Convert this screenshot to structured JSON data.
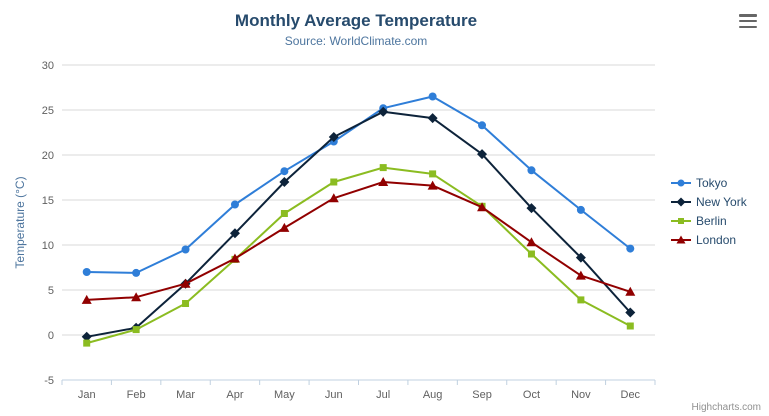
{
  "header": {
    "title": "Monthly Average Temperature",
    "subtitle": "Source: WorldClimate.com"
  },
  "icons": {
    "export_menu": "hamburger-menu-icon"
  },
  "credits": "Highcharts.com",
  "colors": {
    "title_text": "#274b6d",
    "subtitle_text": "#4d759e",
    "axis_label_text": "#606060",
    "gridline": "#d8d8d8",
    "axis_line": "#c0d0e0"
  },
  "chart_data": {
    "type": "line",
    "title": "Monthly Average Temperature",
    "subtitle": "Source: WorldClimate.com",
    "xlabel": "",
    "ylabel": "Temperature (°C)",
    "categories": [
      "Jan",
      "Feb",
      "Mar",
      "Apr",
      "May",
      "Jun",
      "Jul",
      "Aug",
      "Sep",
      "Oct",
      "Nov",
      "Dec"
    ],
    "ylim": [
      -5,
      30
    ],
    "yticks": [
      -5,
      0,
      5,
      10,
      15,
      20,
      25,
      30
    ],
    "grid": true,
    "legend_position": "right",
    "series": [
      {
        "name": "Tokyo",
        "color": "#2f7ed8",
        "marker": "circle",
        "values": [
          7.0,
          6.9,
          9.5,
          14.5,
          18.2,
          21.5,
          25.2,
          26.5,
          23.3,
          18.3,
          13.9,
          9.6
        ]
      },
      {
        "name": "New York",
        "color": "#0d233a",
        "marker": "diamond",
        "values": [
          -0.2,
          0.8,
          5.7,
          11.3,
          17.0,
          22.0,
          24.8,
          24.1,
          20.1,
          14.1,
          8.6,
          2.5
        ]
      },
      {
        "name": "Berlin",
        "color": "#8bbc21",
        "marker": "square",
        "values": [
          -0.9,
          0.6,
          3.5,
          8.4,
          13.5,
          17.0,
          18.6,
          17.9,
          14.3,
          9.0,
          3.9,
          1.0
        ]
      },
      {
        "name": "London",
        "color": "#910000",
        "marker": "triangle",
        "values": [
          3.9,
          4.2,
          5.7,
          8.5,
          11.9,
          15.2,
          17.0,
          16.6,
          14.2,
          10.3,
          6.6,
          4.8
        ]
      }
    ]
  }
}
